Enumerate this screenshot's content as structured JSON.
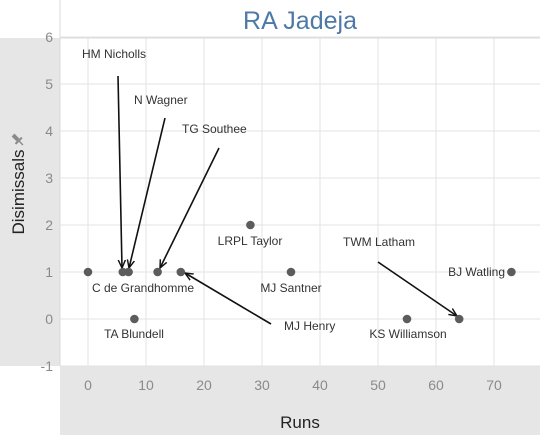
{
  "chart_data": {
    "type": "scatter",
    "title": "RA Jadeja",
    "xlabel": "Runs",
    "ylabel": "Disimissals",
    "xlim": [
      -5,
      78
    ],
    "ylim": [
      -1.2,
      6.35
    ],
    "xticks": [
      0,
      10,
      20,
      30,
      40,
      50,
      60,
      70
    ],
    "yticks": [
      -1,
      0,
      1,
      2,
      3,
      4,
      5,
      6
    ],
    "grid": true,
    "points": [
      {
        "x": 0,
        "y": 1
      },
      {
        "x": 6,
        "y": 1,
        "label": "HM Nicholls"
      },
      {
        "x": 7,
        "y": 1,
        "label": "N Wagner"
      },
      {
        "x": 12,
        "y": 1,
        "label": "TG Southee"
      },
      {
        "x": 16,
        "y": 1,
        "label": "MJ Henry"
      },
      {
        "x": 28,
        "y": 2,
        "label": "LRPL Taylor"
      },
      {
        "x": 35,
        "y": 1,
        "label": "MJ Santner"
      },
      {
        "x": 8,
        "y": 0,
        "label": "TA Blundell"
      },
      {
        "x": 55,
        "y": 0,
        "label": "KS Williamson"
      },
      {
        "x": 64,
        "y": 0,
        "label": "TWM Latham"
      },
      {
        "x": 73,
        "y": 1,
        "label": "BJ Watling"
      }
    ],
    "free_labels": [
      "C de Grandhomme"
    ]
  },
  "colors": {
    "title": "#4e79a7",
    "point": "#5c5c5c",
    "panel": "#e6e6e6",
    "grid": "#e3e3e3",
    "arrow": "#111111"
  },
  "icons": {
    "pin": "pin-icon"
  }
}
